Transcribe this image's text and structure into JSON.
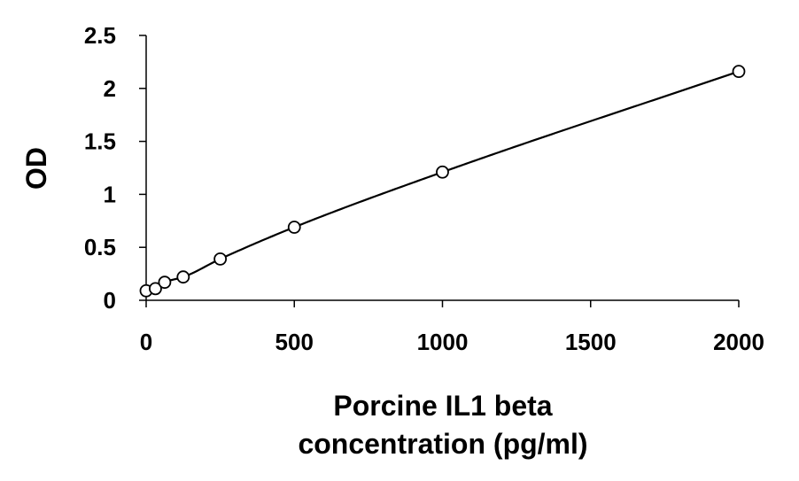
{
  "chart_data": {
    "type": "scatter",
    "title": "",
    "xlabel_lines": [
      "Porcine IL1 beta",
      "concentration (pg/ml)"
    ],
    "ylabel": "OD",
    "xlim": [
      0,
      2000
    ],
    "ylim": [
      0,
      2.5
    ],
    "x_ticks": [
      0,
      500,
      1000,
      1500,
      2000
    ],
    "y_ticks": [
      0,
      0.5,
      1,
      1.5,
      2,
      2.5
    ],
    "x_tick_labels": [
      "0",
      "500",
      "1000",
      "1500",
      "2000"
    ],
    "y_tick_labels": [
      "0",
      "0.5",
      "1",
      "1.5",
      "2",
      "2.5"
    ],
    "grid": false,
    "legend": "none",
    "series": [
      {
        "marker": "open-circle",
        "line": "smooth-fit",
        "x": [
          0,
          31.25,
          62.5,
          125,
          250,
          500,
          1000,
          2000
        ],
        "y": [
          0.09,
          0.11,
          0.17,
          0.22,
          0.39,
          0.69,
          1.21,
          2.16
        ]
      }
    ],
    "colors": {
      "axis": "#000000",
      "marker": "#000000",
      "line": "#000000",
      "background": "#ffffff"
    }
  }
}
